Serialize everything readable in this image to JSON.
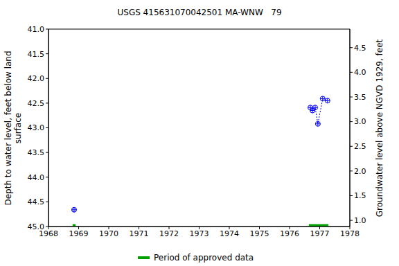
{
  "chart_data": {
    "type": "scatter",
    "title": "USGS 415631070042501 MA-WNW   79",
    "y_label": "Depth to water level, feet below land\nsurface",
    "y2_label": "Groundwater level above NGVD 1929, feet",
    "x": [
      1968.85,
      1976.69,
      1976.76,
      1976.85,
      1976.94,
      1977.1,
      1977.26
    ],
    "values": [
      44.66,
      42.59,
      42.65,
      42.59,
      42.92,
      42.41,
      42.45
    ],
    "color": "#0000ff",
    "marker": "circle-cross",
    "line_style": "dotted",
    "xlim": [
      1968,
      1978
    ],
    "xticks": [
      1968,
      1969,
      1970,
      1971,
      1972,
      1973,
      1974,
      1975,
      1976,
      1977,
      1978
    ],
    "ylim": [
      45,
      41
    ],
    "yticks": [
      {
        "value": 41,
        "label": "41.0"
      },
      {
        "value": 41.5,
        "label": "41.5"
      },
      {
        "value": 42,
        "label": "42.0"
      },
      {
        "value": 42.5,
        "label": "42.5"
      },
      {
        "value": 43,
        "label": "43.0"
      },
      {
        "value": 43.5,
        "label": "43.5"
      },
      {
        "value": 44,
        "label": "44.0"
      },
      {
        "value": 44.5,
        "label": "44.5"
      },
      {
        "value": 45,
        "label": "45.0"
      }
    ],
    "y2lim": [
      0.875,
      4.875
    ],
    "y2ticks": [
      {
        "value": 1,
        "label": "1.0"
      },
      {
        "value": 1.5,
        "label": "1.5"
      },
      {
        "value": 2,
        "label": "2.0"
      },
      {
        "value": 2.5,
        "label": "2.5"
      },
      {
        "value": 3,
        "label": "3.0"
      },
      {
        "value": 3.5,
        "label": "3.5"
      },
      {
        "value": 4,
        "label": "4.0"
      },
      {
        "value": 4.5,
        "label": "4.5"
      }
    ],
    "approved": {
      "name": "Period of approved data",
      "color": "#00a000",
      "periods": [
        [
          1968.8,
          1968.9
        ],
        [
          1976.64,
          1977.29
        ]
      ]
    },
    "legend": "bottom",
    "grid": false
  }
}
